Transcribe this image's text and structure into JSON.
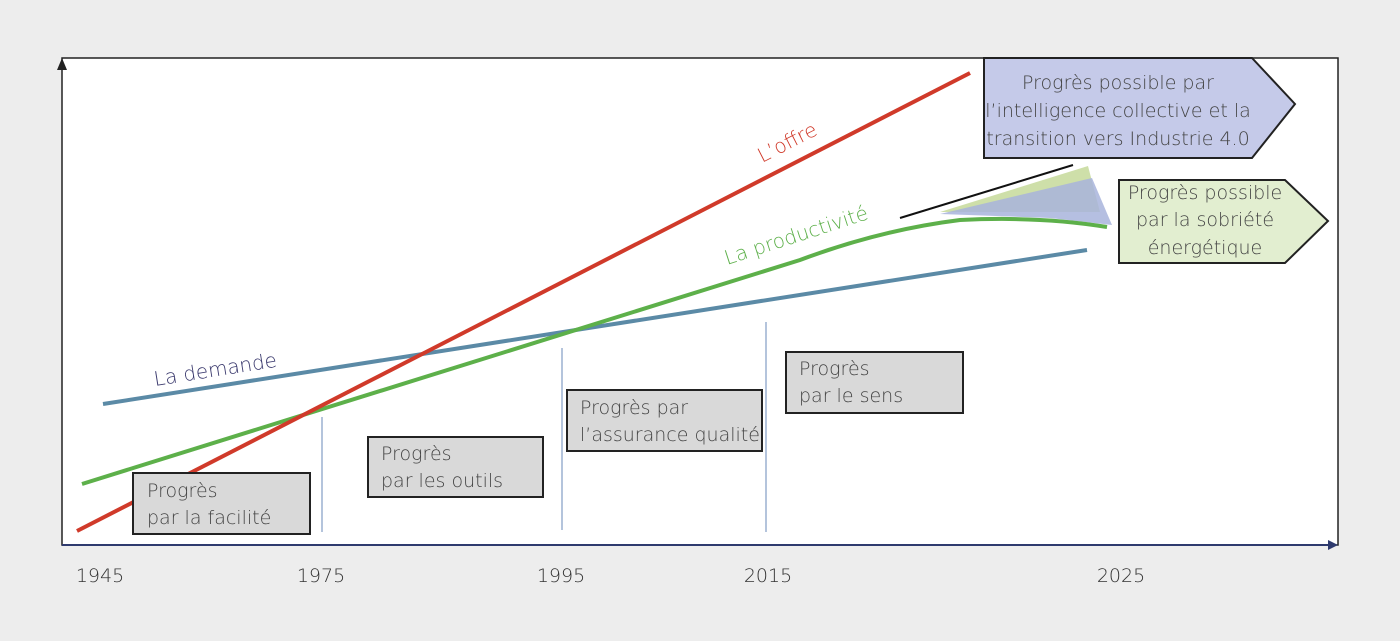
{
  "x_ticks": [
    "1945",
    "1975",
    "1995",
    "2015",
    "2025"
  ],
  "curves": {
    "offre": {
      "label": "L’offre",
      "color": "#d03a2a"
    },
    "productivite": {
      "label": "La productivité",
      "color": "#5db04a"
    },
    "demande": {
      "label": "La demande",
      "color": "#5b8aa6",
      "label_color": "#3b3a6e"
    }
  },
  "phases": [
    {
      "line1": "Progrès",
      "line2": "par la facilité"
    },
    {
      "line1": "Progrès",
      "line2": "par les outils"
    },
    {
      "line1": "Progrès par",
      "line2": "l’assurance qualité"
    },
    {
      "line1": "Progrès",
      "line2": "par le sens"
    }
  ],
  "future": {
    "collective": {
      "line1": "Progrès possible par",
      "line2": "l’intelligence collective et la",
      "line3": "transition vers Industrie 4.0",
      "color": "#c5cae9"
    },
    "sobriete": {
      "line1": "Progrès possible",
      "line2": "par la sobriété",
      "line3": "énergétique",
      "color": "#e2eed0"
    }
  }
}
